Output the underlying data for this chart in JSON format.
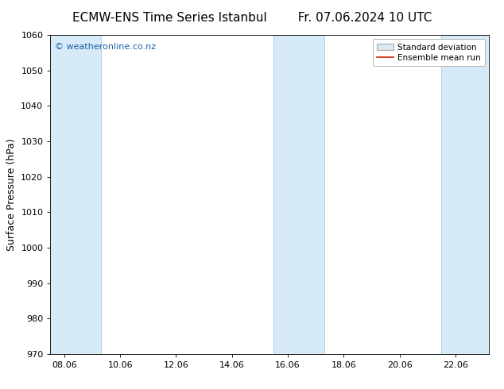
{
  "title_left": "ECMW-ENS Time Series Istanbul",
  "title_right": "Fr. 07.06.2024 10 UTC",
  "ylabel": "Surface Pressure (hPa)",
  "ylim": [
    970,
    1060
  ],
  "yticks": [
    970,
    980,
    990,
    1000,
    1010,
    1020,
    1030,
    1040,
    1050,
    1060
  ],
  "xtick_labels": [
    "08.06",
    "10.06",
    "12.06",
    "14.06",
    "16.06",
    "18.06",
    "20.06",
    "22.06"
  ],
  "xtick_positions": [
    8,
    10,
    12,
    14,
    16,
    18,
    20,
    22
  ],
  "xlim": [
    7.5,
    23.2
  ],
  "shaded_bands": [
    {
      "x_start": 7.5,
      "x_end": 9.3
    },
    {
      "x_start": 15.5,
      "x_end": 17.3
    },
    {
      "x_start": 21.5,
      "x_end": 23.2
    }
  ],
  "band_color": "#d6eaf8",
  "band_edge_color": "#aec9dc",
  "watermark_text": "© weatheronline.co.nz",
  "watermark_color": "#1a5fa8",
  "legend_std_label": "Standard deviation",
  "legend_mean_label": "Ensemble mean run",
  "legend_std_facecolor": "#dce9f2",
  "legend_std_edgecolor": "#aaaaaa",
  "legend_mean_color": "#cc2200",
  "background_color": "#ffffff",
  "title_fontsize": 11,
  "tick_fontsize": 8,
  "ylabel_fontsize": 9,
  "watermark_fontsize": 8,
  "legend_fontsize": 7.5
}
